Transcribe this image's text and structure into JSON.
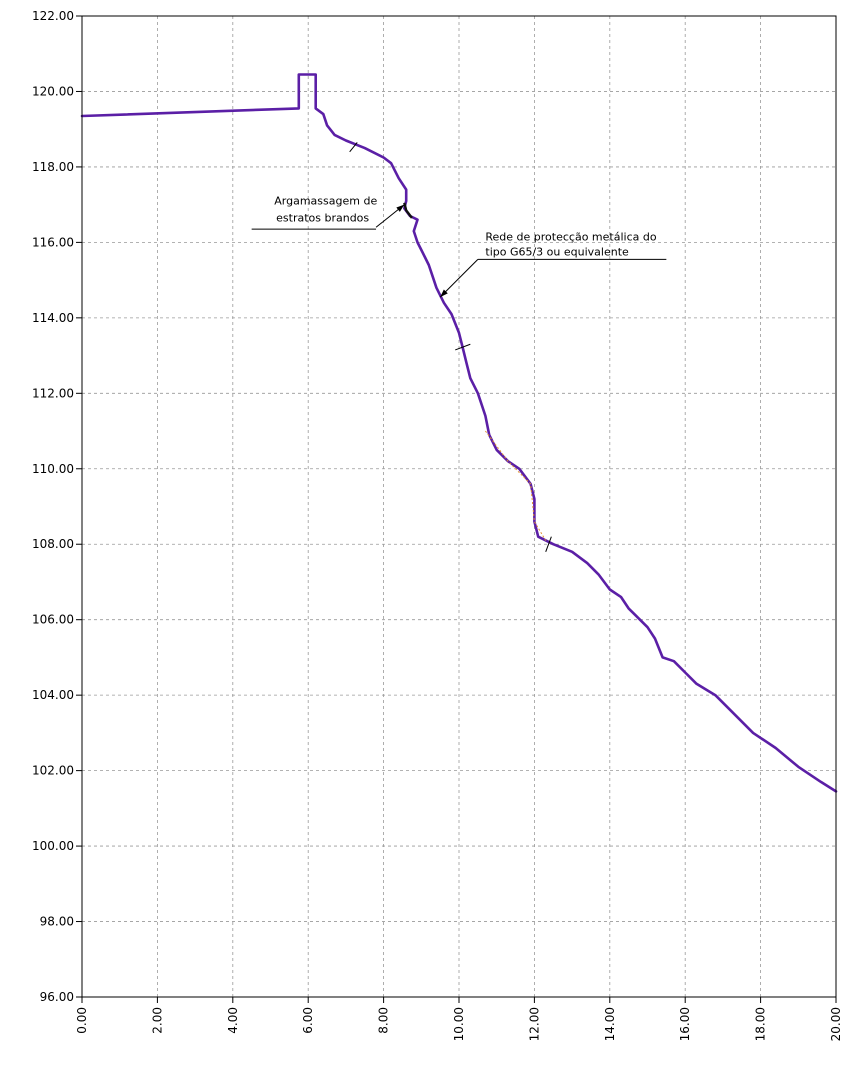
{
  "chart_data": {
    "type": "line",
    "title": "",
    "xlabel": "",
    "ylabel": "",
    "xlim": [
      0,
      20
    ],
    "ylim": [
      96,
      122
    ],
    "grid": true,
    "x_ticks": [
      "0.00",
      "2.00",
      "4.00",
      "6.00",
      "8.00",
      "10.00",
      "12.00",
      "14.00",
      "16.00",
      "18.00",
      "20.00"
    ],
    "y_ticks": [
      "96.00",
      "98.00",
      "100.00",
      "102.00",
      "104.00",
      "106.00",
      "108.00",
      "110.00",
      "112.00",
      "114.00",
      "116.00",
      "118.00",
      "120.00",
      "122.00"
    ],
    "colors": {
      "profile": "#5b1fa6",
      "overlay": "#e09030",
      "markers": "#000000"
    },
    "series": [
      {
        "name": "",
        "points": [
          [
            0.0,
            119.35
          ],
          [
            5.75,
            119.55
          ],
          [
            5.75,
            120.45
          ],
          [
            6.2,
            120.45
          ],
          [
            6.2,
            119.55
          ],
          [
            6.4,
            119.4
          ],
          [
            6.5,
            119.1
          ],
          [
            6.7,
            118.85
          ],
          [
            7.0,
            118.7
          ],
          [
            7.5,
            118.5
          ],
          [
            8.0,
            118.25
          ],
          [
            8.2,
            118.1
          ],
          [
            8.4,
            117.7
          ],
          [
            8.6,
            117.4
          ],
          [
            8.6,
            117.1
          ],
          [
            8.55,
            116.9
          ],
          [
            8.7,
            116.7
          ],
          [
            8.9,
            116.6
          ],
          [
            8.8,
            116.3
          ],
          [
            8.9,
            116.0
          ],
          [
            9.0,
            115.8
          ],
          [
            9.1,
            115.6
          ],
          [
            9.2,
            115.4
          ],
          [
            9.3,
            115.1
          ],
          [
            9.4,
            114.8
          ],
          [
            9.6,
            114.4
          ],
          [
            9.8,
            114.1
          ],
          [
            10.0,
            113.6
          ],
          [
            10.1,
            113.2
          ],
          [
            10.2,
            112.8
          ],
          [
            10.3,
            112.4
          ],
          [
            10.5,
            112.0
          ],
          [
            10.7,
            111.4
          ],
          [
            10.8,
            110.9
          ],
          [
            11.0,
            110.5
          ],
          [
            11.3,
            110.2
          ],
          [
            11.6,
            110.0
          ],
          [
            11.9,
            109.6
          ],
          [
            12.0,
            109.2
          ],
          [
            12.0,
            108.6
          ],
          [
            12.1,
            108.2
          ],
          [
            12.5,
            108.0
          ],
          [
            13.0,
            107.8
          ],
          [
            13.4,
            107.5
          ],
          [
            13.7,
            107.2
          ],
          [
            14.0,
            106.8
          ],
          [
            14.3,
            106.6
          ],
          [
            14.5,
            106.3
          ],
          [
            14.7,
            106.1
          ],
          [
            15.0,
            105.8
          ],
          [
            15.2,
            105.5
          ],
          [
            15.4,
            105.0
          ],
          [
            15.7,
            104.9
          ],
          [
            16.0,
            104.6
          ],
          [
            16.3,
            104.3
          ],
          [
            16.8,
            104.0
          ],
          [
            17.2,
            103.6
          ],
          [
            17.8,
            103.0
          ],
          [
            18.4,
            102.6
          ],
          [
            19.0,
            102.1
          ],
          [
            19.6,
            101.7
          ],
          [
            20.0,
            101.45
          ]
        ]
      }
    ],
    "overlay_segments": [
      [
        [
          10.7,
          111.0
        ],
        [
          11.3,
          110.2
        ],
        [
          11.9,
          109.6
        ],
        [
          12.0,
          108.6
        ],
        [
          12.3,
          108.1
        ]
      ]
    ],
    "tick_marks": [
      [
        [
          7.1,
          118.4
        ],
        [
          7.3,
          118.65
        ]
      ],
      [
        [
          9.9,
          113.15
        ],
        [
          10.3,
          113.3
        ]
      ],
      [
        [
          12.3,
          107.8
        ],
        [
          12.45,
          108.2
        ]
      ]
    ],
    "annotations": [
      {
        "id": "argamassagem",
        "lines": [
          "Argamassagem de",
          "estratos brandos"
        ],
        "arrow_to": [
          8.55,
          117.0
        ],
        "arrow_from": [
          7.8,
          116.4
        ],
        "underline": [
          [
            4.5,
            116.35
          ],
          [
            7.8,
            116.35
          ]
        ],
        "text_at": [
          [
            5.1,
            117.0
          ],
          [
            5.15,
            116.55
          ]
        ]
      },
      {
        "id": "rede",
        "lines": [
          "Rede de protecção metálica do",
          "tipo G65/3 ou equivalente"
        ],
        "arrow_to": [
          9.5,
          114.55
        ],
        "arrow_from": [
          10.5,
          115.55
        ],
        "underline": [
          [
            10.5,
            115.55
          ],
          [
            15.5,
            115.55
          ]
        ],
        "text_at": [
          [
            10.7,
            116.05
          ],
          [
            10.7,
            115.65
          ]
        ]
      }
    ]
  }
}
